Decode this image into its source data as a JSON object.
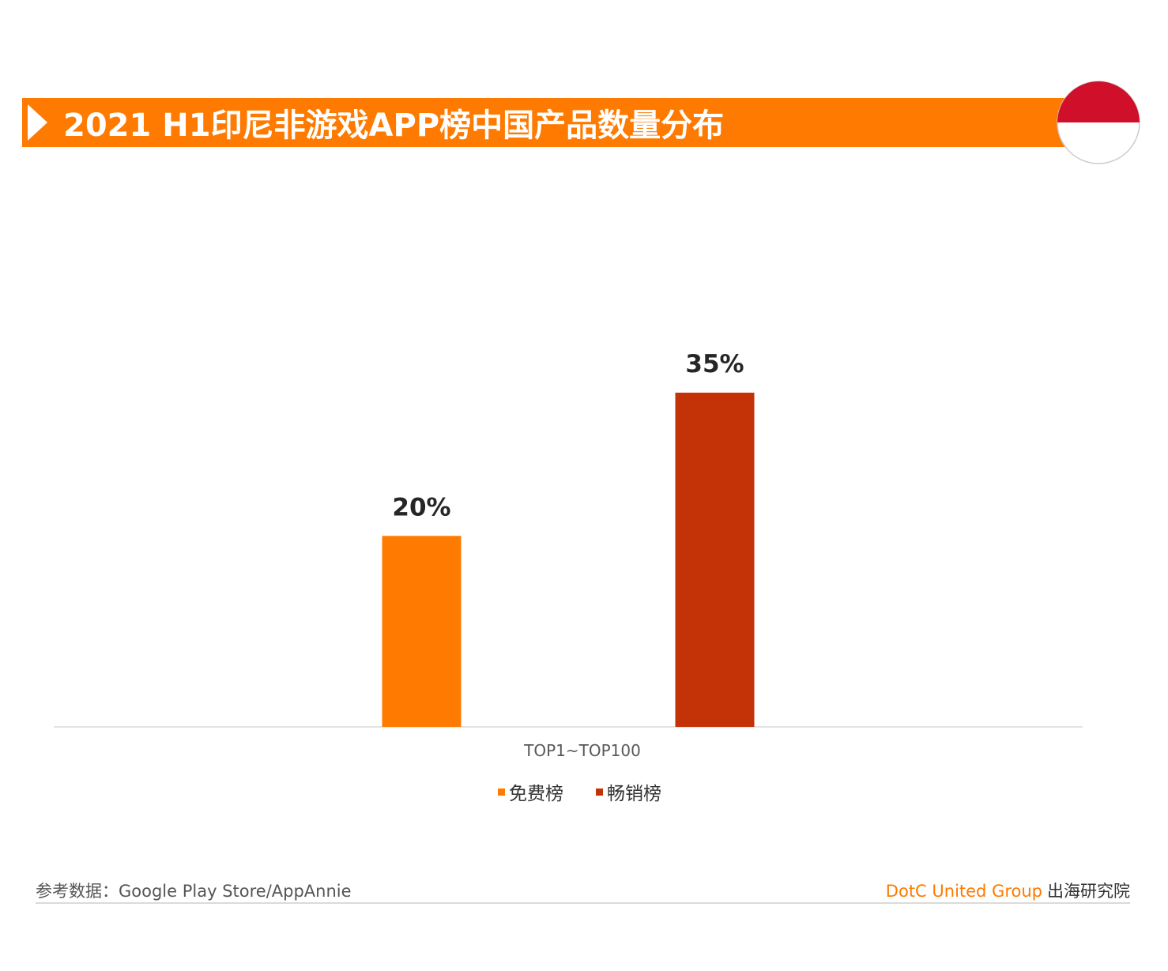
{
  "chart_data": {
    "type": "bar",
    "title": "2021 H1印尼非游戏APP榜中国产品数量分布",
    "categories": [
      "TOP1~TOP100"
    ],
    "series": [
      {
        "name": "免费榜",
        "color": "#ff7a00",
        "values": [
          20
        ],
        "value_labels": [
          "20%"
        ]
      },
      {
        "name": "畅销榜",
        "color": "#c43208",
        "values": [
          35
        ],
        "value_labels": [
          "35%"
        ]
      }
    ],
    "source": "参考数据：Google Play Store/AppAnnie",
    "brand": "DotC United Group",
    "brand_suffix": "出海研究院",
    "legend": "bottom"
  }
}
